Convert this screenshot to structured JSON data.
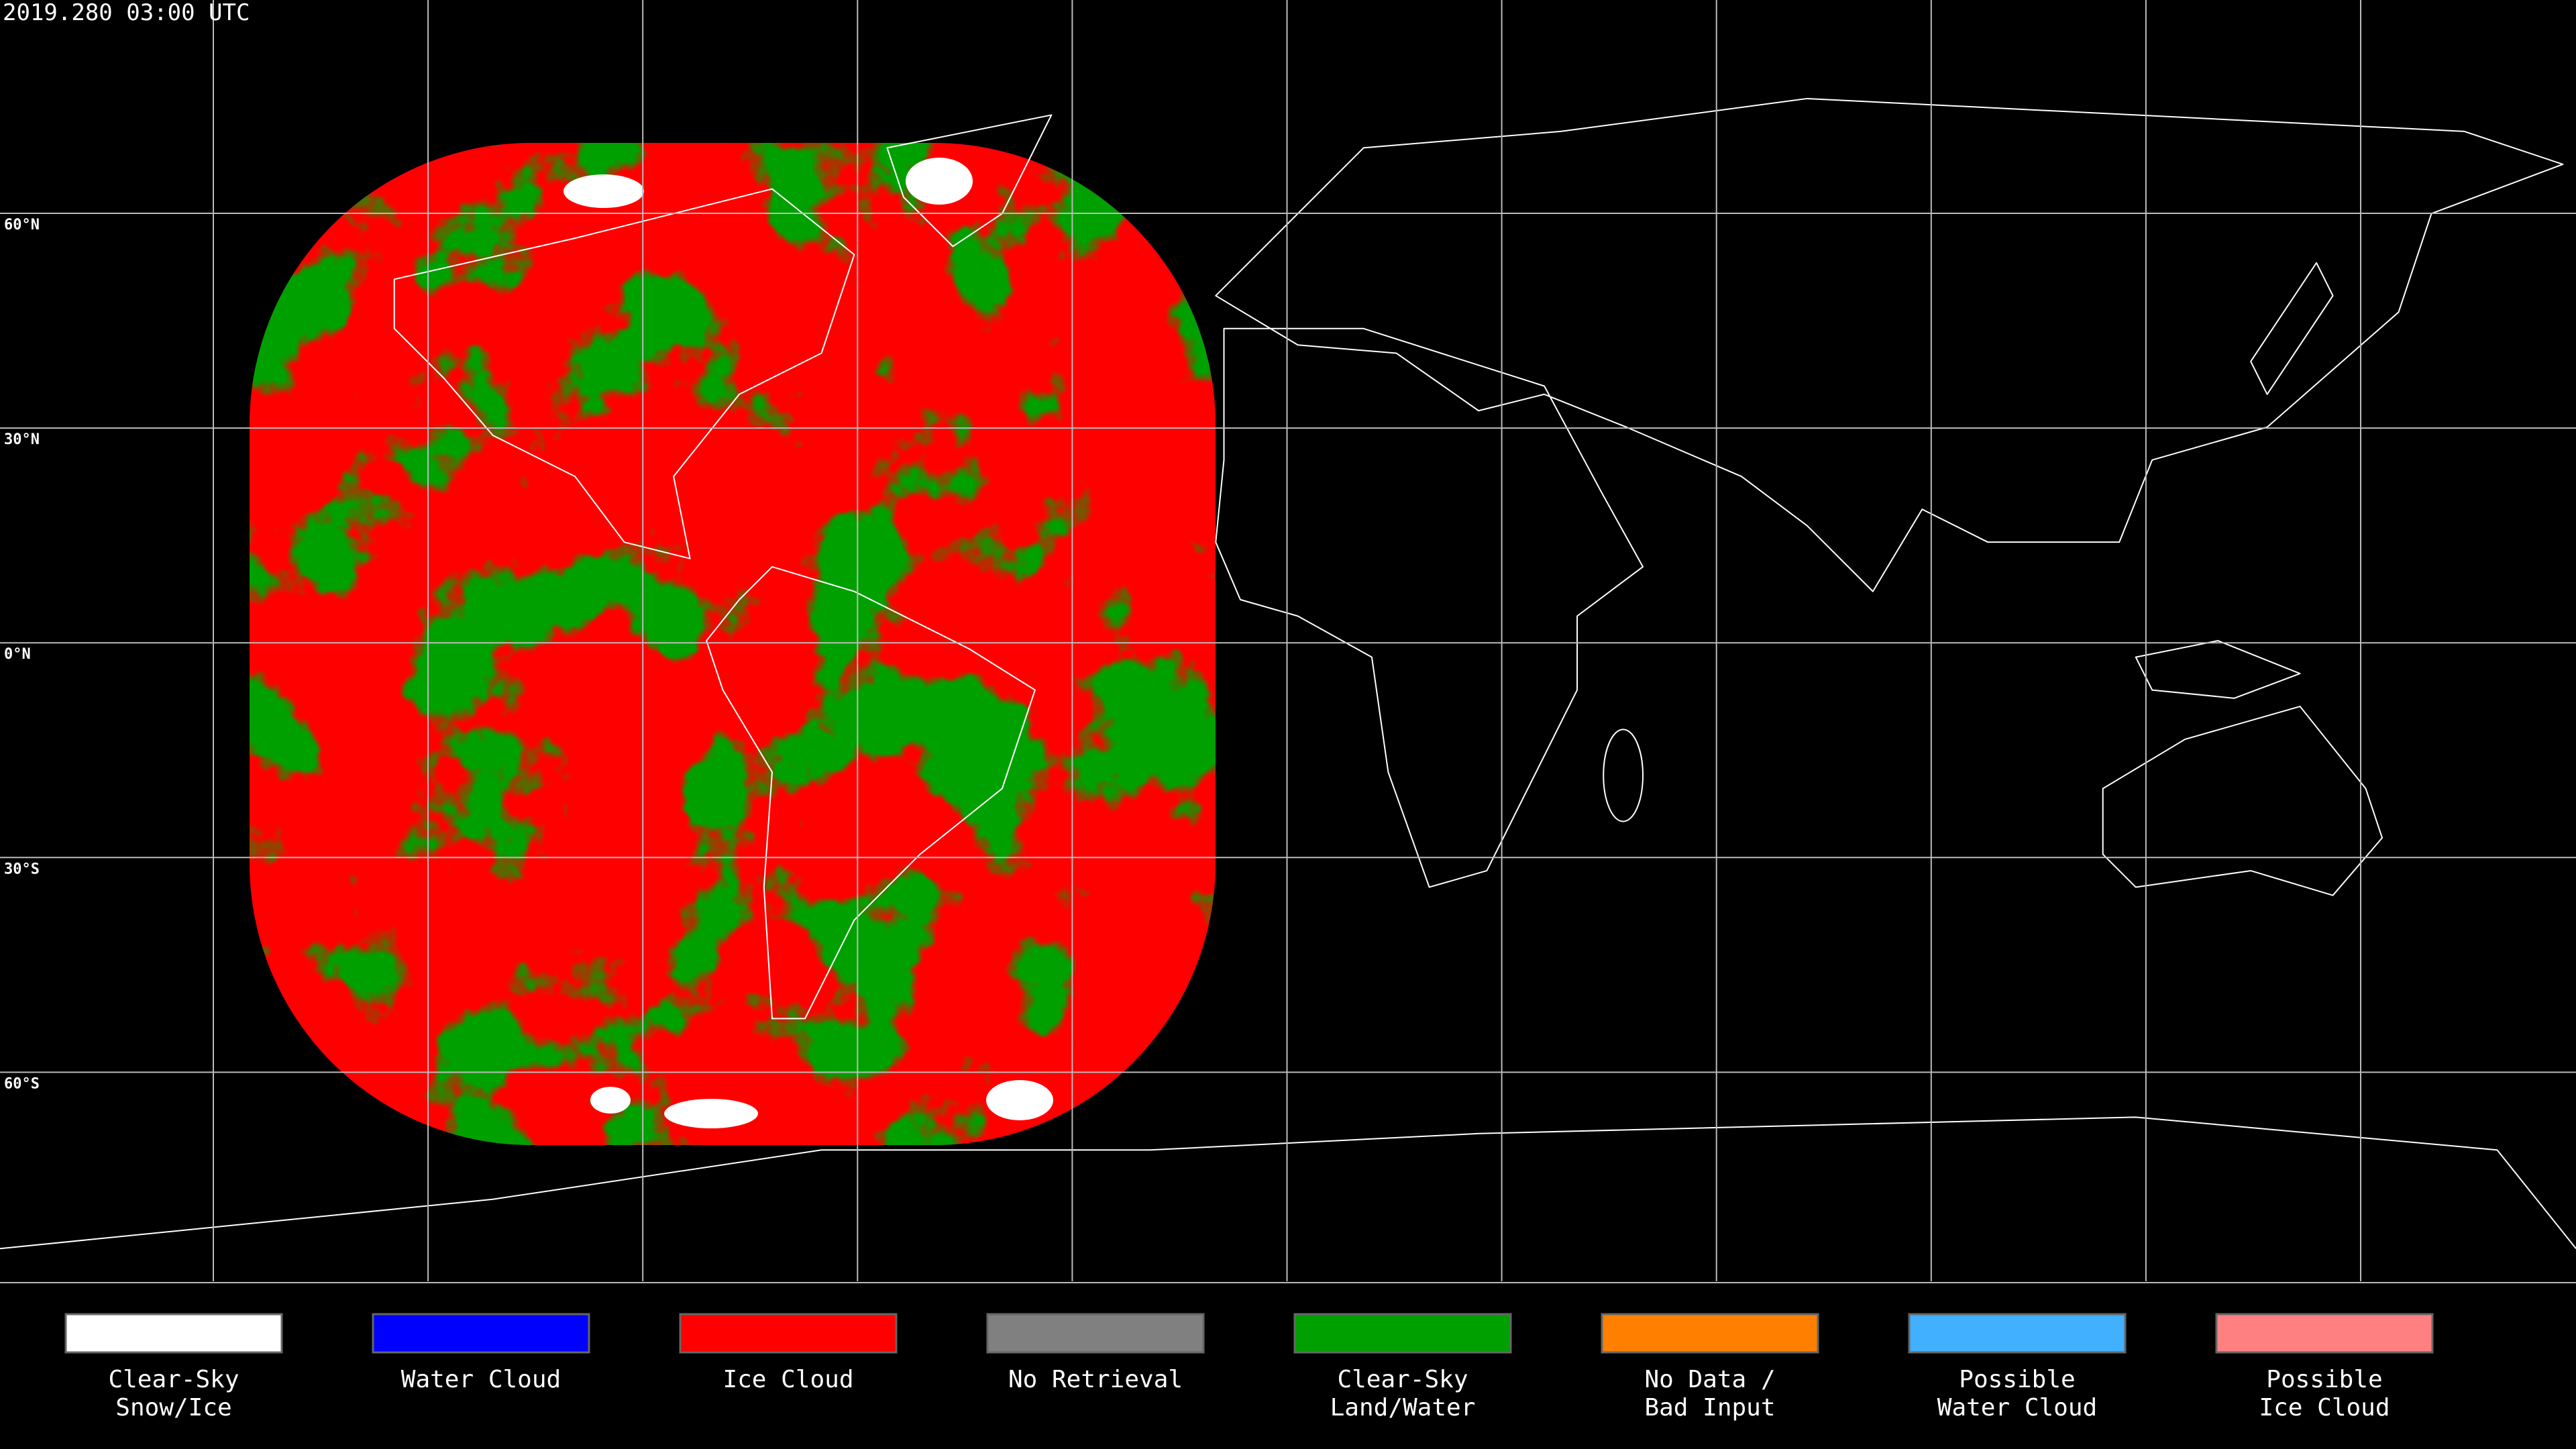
{
  "header": {
    "timestamp": "2019.280 03:00 UTC"
  },
  "map": {
    "latitude_labels": [
      "60°N",
      "30°N",
      "0°N",
      "30°S",
      "60°S"
    ]
  },
  "legend": {
    "items": [
      {
        "lines": [
          "Clear-Sky",
          "Snow/Ice"
        ],
        "color": "#ffffff"
      },
      {
        "lines": [
          "Water Cloud"
        ],
        "color": "#0000ff"
      },
      {
        "lines": [
          "Ice Cloud"
        ],
        "color": "#ff0000"
      },
      {
        "lines": [
          "No Retrieval"
        ],
        "color": "#808080"
      },
      {
        "lines": [
          "Clear-Sky",
          "Land/Water"
        ],
        "color": "#00a000"
      },
      {
        "lines": [
          "No Data /",
          "Bad Input"
        ],
        "color": "#ff8000"
      },
      {
        "lines": [
          "Possible",
          "Water Cloud"
        ],
        "color": "#40b0ff"
      },
      {
        "lines": [
          "Possible",
          "Ice Cloud"
        ],
        "color": "#ff8080"
      }
    ]
  }
}
